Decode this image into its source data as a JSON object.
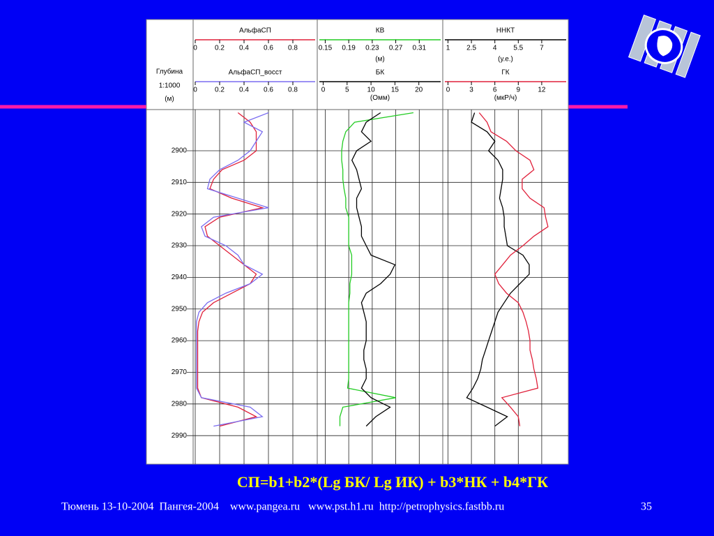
{
  "chart_data": {
    "type": "well-log",
    "depth_title": "Глубина",
    "depth_scale": "1:1000",
    "depth_unit": "(м)",
    "ylim": [
      2887,
      2999
    ],
    "yticks": [
      2900,
      2910,
      2920,
      2930,
      2940,
      2950,
      2960,
      2970,
      2980,
      2990
    ],
    "depth": [
      2888,
      2891,
      2894,
      2897,
      2900,
      2903,
      2906,
      2909,
      2912,
      2915,
      2918,
      2921,
      2924,
      2927,
      2930,
      2933,
      2936,
      2939,
      2942,
      2945,
      2948,
      2951,
      2954,
      2957,
      2960,
      2963,
      2966,
      2969,
      2972,
      2975,
      2978,
      2981,
      2984,
      2987
    ],
    "tracks": [
      {
        "curves": [
          {
            "name": "АльфаСП",
            "color": "#e0203a",
            "xlim": [
              0,
              1
            ],
            "xticks": [
              0,
              0.2,
              0.4,
              0.6,
              0.8
            ],
            "values": [
              0.35,
              0.45,
              0.5,
              0.5,
              0.5,
              0.4,
              0.22,
              0.15,
              0.12,
              0.3,
              0.55,
              0.2,
              0.08,
              0.1,
              0.2,
              0.3,
              0.4,
              0.5,
              0.45,
              0.3,
              0.15,
              0.06,
              0.03,
              0.02,
              0.02,
              0.02,
              0.02,
              0.02,
              0.02,
              0.02,
              0.05,
              0.35,
              0.5,
              0.2
            ]
          },
          {
            "name": "АльфаСП_восст",
            "color": "#7a6cf0",
            "xlim": [
              0,
              1
            ],
            "xticks": [
              0,
              0.2,
              0.4,
              0.6,
              0.8
            ],
            "values": [
              0.6,
              0.4,
              0.55,
              0.5,
              0.45,
              0.35,
              0.2,
              0.12,
              0.1,
              0.35,
              0.6,
              0.15,
              0.05,
              0.08,
              0.25,
              0.35,
              0.4,
              0.55,
              0.45,
              0.25,
              0.1,
              0.03,
              0.01,
              0.01,
              0.01,
              0.01,
              0.01,
              0.01,
              0.01,
              0.01,
              0.05,
              0.45,
              0.55,
              0.15
            ]
          }
        ]
      },
      {
        "curves": [
          {
            "name": "КВ",
            "unit": "(м)",
            "color": "#22cc22",
            "xlim": [
              0.14,
              0.35
            ],
            "xticks": [
              0.15,
              0.19,
              0.23,
              0.27,
              0.31
            ],
            "values": [
              0.3,
              0.2,
              0.185,
              0.18,
              0.178,
              0.178,
              0.18,
              0.18,
              0.182,
              0.185,
              0.185,
              0.19,
              0.19,
              0.19,
              0.19,
              0.195,
              0.195,
              0.195,
              0.192,
              0.192,
              0.19,
              0.19,
              0.19,
              0.19,
              0.19,
              0.19,
              0.19,
              0.19,
              0.19,
              0.188,
              0.27,
              0.18,
              0.175,
              0.175
            ]
          },
          {
            "name": "БК",
            "unit": "(Омм)",
            "color": "#000000",
            "xlim": [
              -0.8,
              25
            ],
            "xticks": [
              0,
              5,
              10,
              15,
              20
            ],
            "values": [
              12,
              9,
              8,
              10,
              7,
              6,
              7,
              7.5,
              8,
              7,
              7,
              7.5,
              8,
              8,
              9,
              10,
              15,
              14,
              12,
              9,
              8,
              8.5,
              9,
              9,
              9,
              8.5,
              8.5,
              9,
              9,
              8,
              10,
              14,
              11,
              9
            ]
          }
        ]
      },
      {
        "curves": [
          {
            "name": "ННКТ",
            "unit": "(у.е.)",
            "color": "#000000",
            "xlim": [
              0.8,
              8.7
            ],
            "xticks": [
              1,
              2.5,
              4,
              5.5,
              7
            ],
            "values": [
              2.7,
              2.5,
              3.5,
              4,
              3.6,
              4.2,
              4.5,
              4.5,
              4.4,
              4.3,
              4.5,
              4.6,
              4.6,
              4.7,
              4.8,
              5.8,
              6.2,
              6.2,
              5.6,
              5,
              4.6,
              4.2,
              4,
              3.8,
              3.6,
              3.4,
              3.2,
              3.1,
              2.9,
              2.6,
              2.2,
              3.5,
              4.8,
              4
            ]
          },
          {
            "name": "ГК",
            "unit": "(мкР/ч)",
            "color": "#e0203a",
            "xlim": [
              -0.4,
              15.4
            ],
            "xticks": [
              0,
              3,
              6,
              9,
              12
            ],
            "values": [
              4,
              5,
              5.5,
              7.5,
              8.7,
              10.5,
              11,
              9.5,
              9.5,
              10.5,
              12.3,
              12.5,
              12.8,
              11,
              9.6,
              8,
              7,
              6,
              6.5,
              7.5,
              9,
              9.6,
              10,
              10.3,
              10.5,
              10.5,
              10.8,
              11,
              11.3,
              11.5,
              6.9,
              8,
              9,
              9.2
            ]
          }
        ]
      }
    ]
  },
  "formula": "СП=b1+b2*(Lg БК/ Lg ИК) + b3*НК + b4*ГК",
  "footer": "Тюмень 13-10-2004  Пангея-2004    www.pangea.ru   www.pst.h1.ru  http://petrophysics.fastbb.ru",
  "page_number": "35"
}
